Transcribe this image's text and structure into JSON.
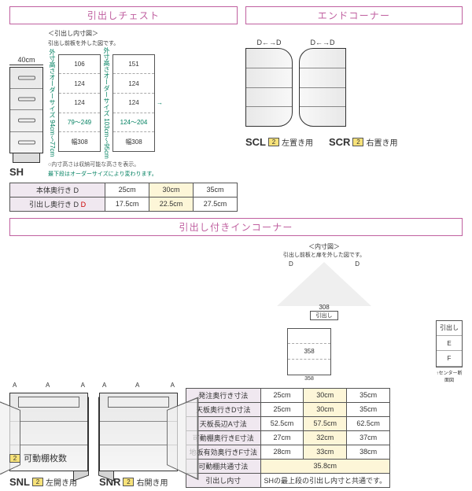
{
  "sections": {
    "chest": {
      "title": "引出しチェスト"
    },
    "endcorner": {
      "title": "エンドコーナー"
    },
    "incorner": {
      "title": "引出し付きインコーナー"
    }
  },
  "chest": {
    "width_label": "40cm",
    "model": "SH",
    "inner_caption": "＜引出し内寸図＞",
    "inner_sub": "引出し前板を外した図です。",
    "height_range_a": "外寸高さオーダーサイズ 94cm〜77cm",
    "height_range_b": "外寸高さオーダーサイズ 103cm〜95cm",
    "cells_a": [
      "106",
      "124",
      "124",
      "79〜249",
      "幅308"
    ],
    "cells_b": [
      "151",
      "124",
      "124",
      "124〜204",
      "幅308"
    ],
    "note1": "○内寸高さは収納可能な高さを表示。",
    "note2": "最下段はオーダーサイズにより変わります。",
    "table": {
      "row1_label": "本体奥行き D",
      "row2_label": "引出し奥行き D",
      "r1": [
        "25cm",
        "30cm",
        "35cm"
      ],
      "r2": [
        "17.5cm",
        "22.5cm",
        "27.5cm"
      ]
    }
  },
  "endcorner": {
    "d_label": "D",
    "scl": {
      "model": "SCL",
      "badge": "2",
      "use": "左置き用"
    },
    "scr": {
      "model": "SCR",
      "badge": "2",
      "use": "右置き用"
    }
  },
  "incorner": {
    "a_label": "A",
    "snl": {
      "model": "SNL",
      "badge": "2",
      "use": "左開き用"
    },
    "snr": {
      "model": "SNR",
      "badge": "2",
      "use": "右開き用"
    },
    "dim_caption": "＜内寸図＞",
    "dim_sub": "引出し前板と扉を外した図です。",
    "plan_width": "308",
    "plan_drawer": "引出し",
    "front_width": "358",
    "side_caption": "↑センター断面図",
    "ef_e": "E",
    "ef_f": "F",
    "table": {
      "rows": [
        {
          "label": "発注奥行き寸法",
          "v": [
            "25cm",
            "30cm",
            "35cm"
          ]
        },
        {
          "label": "天板奥行きD寸法",
          "v": [
            "25cm",
            "30cm",
            "35cm"
          ]
        },
        {
          "label": "天板長辺A寸法",
          "v": [
            "52.5cm",
            "57.5cm",
            "62.5cm"
          ]
        },
        {
          "label": "可動棚奥行きE寸法",
          "v": [
            "27cm",
            "32cm",
            "37cm"
          ]
        },
        {
          "label": "地板有効奥行きF寸法",
          "v": [
            "28cm",
            "33cm",
            "38cm"
          ]
        },
        {
          "label": "可動棚共通寸法",
          "span": "35.8cm"
        },
        {
          "label": "引出し内寸",
          "span": "SHの最上段の引出し内寸と共通です。"
        }
      ]
    }
  },
  "legend": {
    "badge": "2",
    "text": "可動棚枚数"
  },
  "colors": {
    "accent": "#c060a0",
    "green": "#008060",
    "highlight": "#fdf6d8",
    "badge": "#f7e27a"
  }
}
